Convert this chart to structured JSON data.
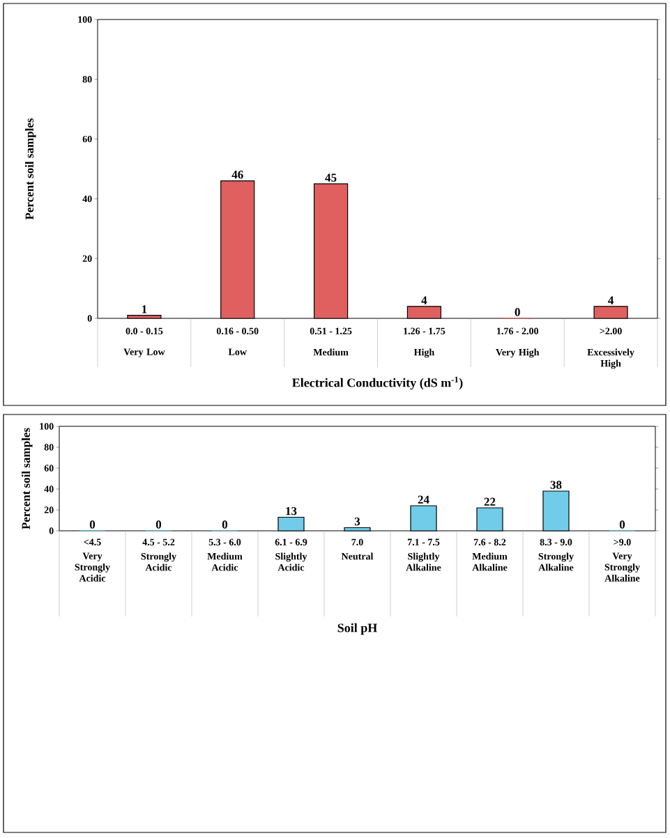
{
  "chart_data": [
    {
      "type": "bar",
      "ylabel": "Percent soil samples",
      "xlabel": "Electrical Conductivity (dS m$^{-1}$)",
      "categories": [
        "0.0 - 0.15",
        "0.16 - 0.50",
        "0.51 - 1.25",
        "1.26 - 1.75",
        "1.76 - 2.00",
        ">2.00"
      ],
      "annotations": [
        "Very Low",
        "Low",
        "Medium",
        "High",
        "Very High",
        "Excessively High"
      ],
      "values": [
        1,
        46,
        45,
        4,
        0,
        4
      ],
      "color": "#e06060",
      "ylim": [
        0,
        100
      ],
      "yticks": [
        0,
        20,
        40,
        60,
        80,
        100
      ],
      "data_labels": true
    },
    {
      "type": "bar",
      "ylabel": "Percent soil samples",
      "xlabel": "Soil pH",
      "categories": [
        "<4.5",
        "4.5 - 5.2",
        "5.3 - 6.0",
        "6.1 - 6.9",
        "7.0",
        "7.1 - 7.5",
        "7.6 - 8.2",
        "8.3 - 9.0",
        ">9.0"
      ],
      "annotations": [
        "Very Strongly Acidic",
        "Strongly Acidic",
        "Medium Acidic",
        "Slightly Acidic",
        "Neutral",
        "Slightly Alkaline",
        "Medium Alkaline",
        "Strongly Alkaline",
        "Very Strongly Alkaline"
      ],
      "values": [
        0,
        0,
        0,
        13,
        3,
        24,
        22,
        38,
        0
      ],
      "color": "#70cce8",
      "ylim": [
        0,
        100
      ],
      "yticks": [
        0,
        20,
        40,
        60,
        80,
        100
      ],
      "data_labels": true
    }
  ]
}
